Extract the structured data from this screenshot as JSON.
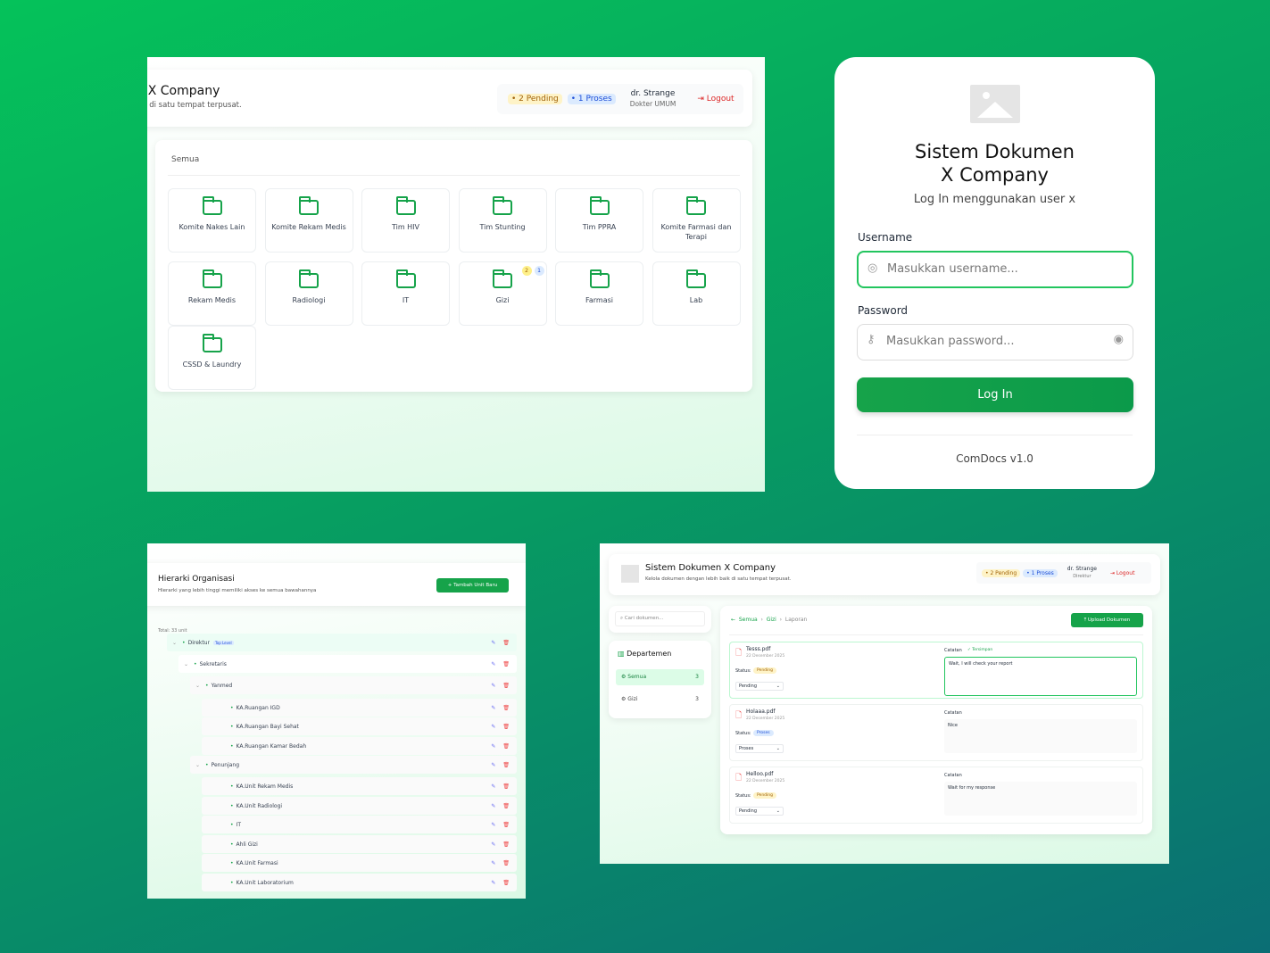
{
  "app_title": "Sistem Dokumen X Company",
  "app_subtitle": "Kelola dokumen dengan lebih baik di satu tempat terpusat.",
  "header": {
    "pending": "• 2 Pending",
    "proses": "• 1 Proses",
    "user_name": "dr. Strange",
    "user_role_a": "Dokter UMUM",
    "user_role_b": "Direktur",
    "logout": "Logout"
  },
  "folders": {
    "section": "Semua",
    "items": [
      {
        "label": "Komite Nakes Lain"
      },
      {
        "label": "Komite Rekam Medis"
      },
      {
        "label": "Tim HIV"
      },
      {
        "label": "Tim Stunting"
      },
      {
        "label": "Tim PPRA"
      },
      {
        "label": "Komite Farmasi dan Terapi"
      },
      {
        "label": "Rekam Medis"
      },
      {
        "label": "Radiologi"
      },
      {
        "label": "IT"
      },
      {
        "label": "Gizi",
        "pending": "2",
        "proses": "1"
      },
      {
        "label": "Farmasi"
      },
      {
        "label": "Lab"
      },
      {
        "label": "CSSD & Laundry"
      }
    ]
  },
  "login": {
    "title_line1": "Sistem Dokumen",
    "title_line2": "X Company",
    "subtitle": "Log In menggunakan user x",
    "username_label": "Username",
    "username_placeholder": "Masukkan username...",
    "password_label": "Password",
    "password_placeholder": "Masukkan password...",
    "button": "Log In",
    "version": "ComDocs v1.0"
  },
  "hierarchy": {
    "title": "Hierarki Organisasi",
    "subtitle": "Hierarki yang lebih tinggi memiliki akses ke semua bawahannya",
    "add_button": "+ Tambah Unit Baru",
    "total": "Total: 33 unit",
    "top_level_badge": "Top Level",
    "rows": [
      {
        "label": "Direktur",
        "level": 0,
        "expanded": true
      },
      {
        "label": "Sekretaris",
        "level": 1,
        "expanded": true
      },
      {
        "label": "Yanmed",
        "level": 2,
        "expanded": true
      },
      {
        "label": "KA.Ruangan IGD",
        "level": 3
      },
      {
        "label": "KA.Ruangan Bayi Sehat",
        "level": 3
      },
      {
        "label": "KA.Ruangan Kamar Bedah",
        "level": 3
      },
      {
        "label": "Penunjang",
        "level": 2,
        "expanded": true
      },
      {
        "label": "KA.Unit Rekam Medis",
        "level": 3
      },
      {
        "label": "KA.Unit Radiologi",
        "level": 3
      },
      {
        "label": "IT",
        "level": 3
      },
      {
        "label": "Ahli Gizi",
        "level": 3
      },
      {
        "label": "KA.Unit Farmasi",
        "level": 3
      },
      {
        "label": "KA.Unit Laboratorium",
        "level": 3
      }
    ]
  },
  "documents": {
    "search_placeholder": "Cari dokumen...",
    "dept_title": "Departemen",
    "depts": [
      {
        "label": "Semua",
        "count": "3"
      },
      {
        "label": "Gizi",
        "count": "3"
      }
    ],
    "breadcrumb": [
      "Semua",
      "Gizi",
      "Laporan"
    ],
    "upload": "Upload Dokumen",
    "status_label": "Status:",
    "note_label": "Catatan",
    "saved": "✓ Tersimpan",
    "items": [
      {
        "name": "Tesss.pdf",
        "date": "22 Desember 2025",
        "status": "Pending",
        "note": "Wait, I will check your report"
      },
      {
        "name": "Holaaa.pdf",
        "date": "22 Desember 2025",
        "status": "Proses",
        "note": "Nice"
      },
      {
        "name": "Helloo.pdf",
        "date": "22 Desember 2025",
        "status": "Pending",
        "note": "Wait for my response"
      }
    ]
  }
}
